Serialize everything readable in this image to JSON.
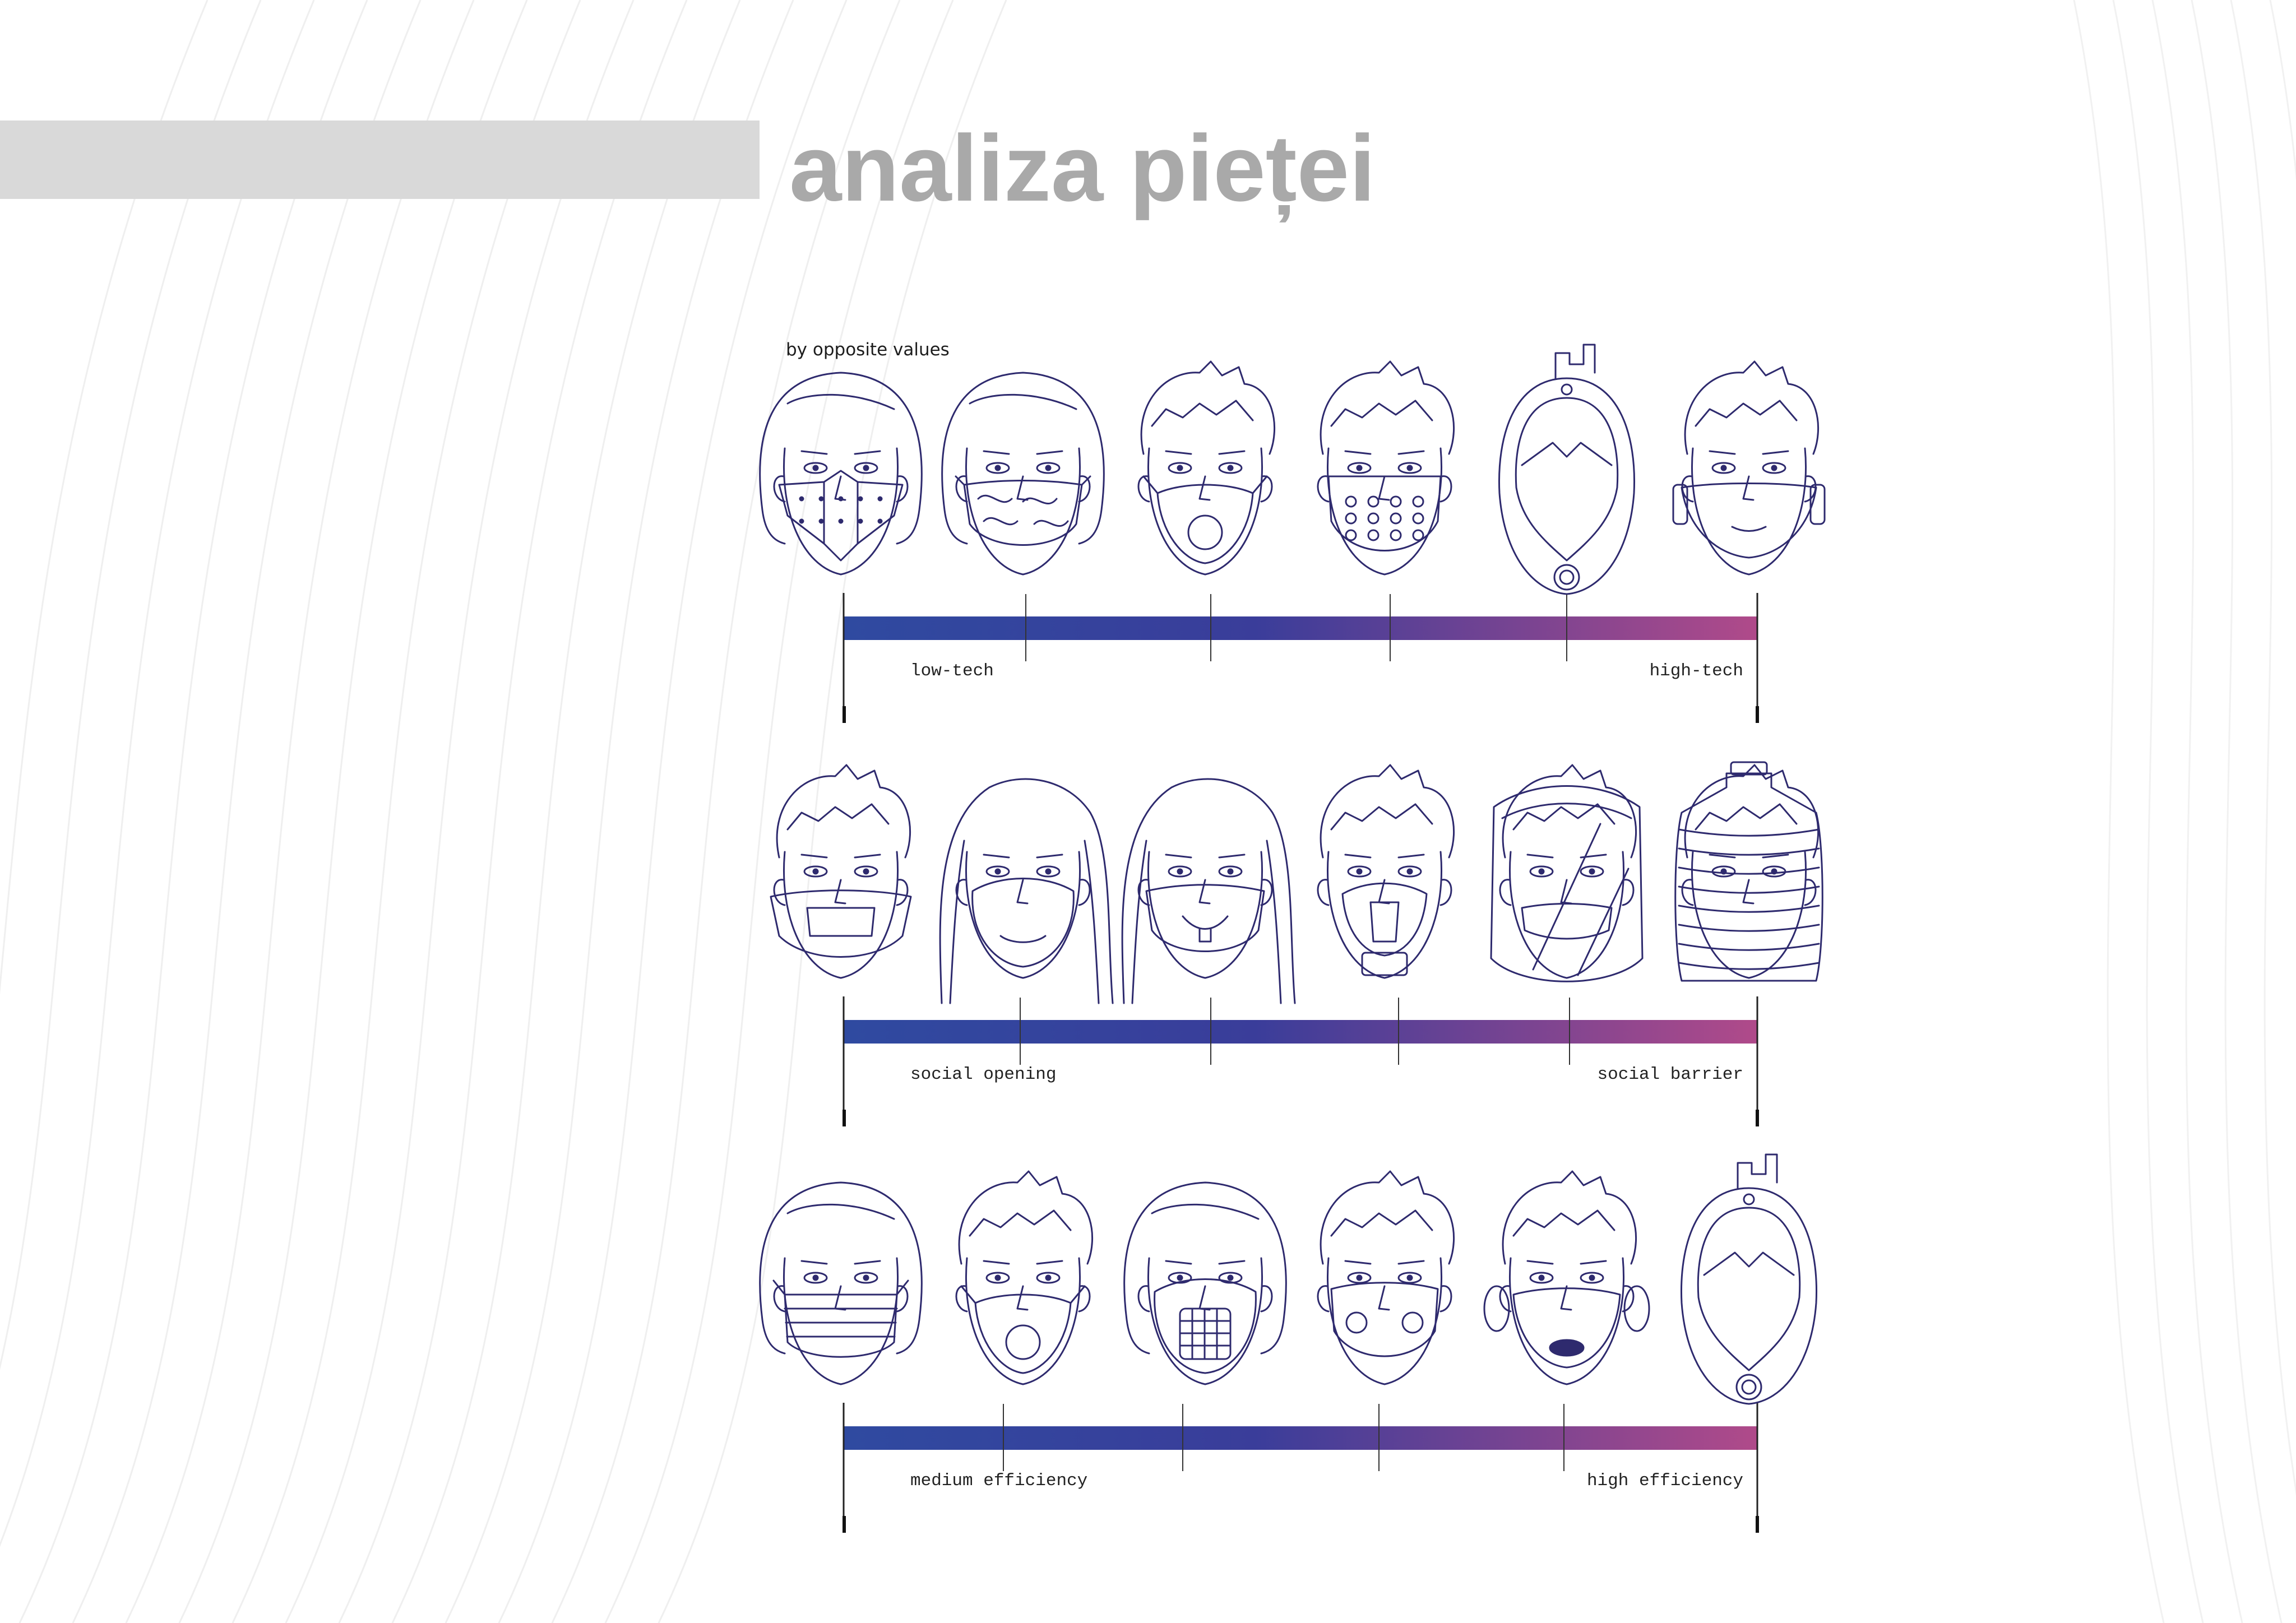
{
  "title": "analiza pieței",
  "subtitle": "by opposite values",
  "colors": {
    "gradient_start": "#2f4aa0",
    "gradient_mid": "#3a3d9a",
    "gradient_end": "#b04a8a",
    "sketch_ink": "#2e2a6e",
    "title_bar": "#d9d9d9",
    "title_text": "#a9a9a9"
  },
  "scales": [
    {
      "left_label": "low-tech",
      "right_label": "high-tech",
      "masks": [
        {
          "hair": "bob",
          "mask": "origami-mask"
        },
        {
          "hair": "bob",
          "mask": "patterned-cloth-mask"
        },
        {
          "hair": "short",
          "mask": "valve-respirator"
        },
        {
          "hair": "short",
          "mask": "perforated-sport-mask"
        },
        {
          "hair": "none",
          "mask": "full-face-snorkel-mask"
        },
        {
          "hair": "short",
          "mask": "clear-tech-mask"
        }
      ]
    },
    {
      "left_label": "social opening",
      "right_label": "social barrier",
      "masks": [
        {
          "hair": "short",
          "mask": "clear-mouth-mask"
        },
        {
          "hair": "long",
          "mask": "n95-cup-mask"
        },
        {
          "hair": "long",
          "mask": "printed-smile-mask"
        },
        {
          "hair": "short",
          "mask": "half-face-filter-respirator"
        },
        {
          "hair": "short",
          "mask": "face-shield-hood"
        },
        {
          "hair": "short",
          "mask": "bottle-helmet"
        }
      ]
    },
    {
      "left_label": "medium efficiency",
      "right_label": "high efficiency",
      "masks": [
        {
          "hair": "bob",
          "mask": "surgical-mask"
        },
        {
          "hair": "short",
          "mask": "valve-respirator"
        },
        {
          "hair": "bob",
          "mask": "mesh-silicone-respirator"
        },
        {
          "hair": "short",
          "mask": "sport-filter-mask"
        },
        {
          "hair": "short",
          "mask": "powered-respirator"
        },
        {
          "hair": "none",
          "mask": "full-face-snorkel-mask"
        }
      ]
    }
  ]
}
